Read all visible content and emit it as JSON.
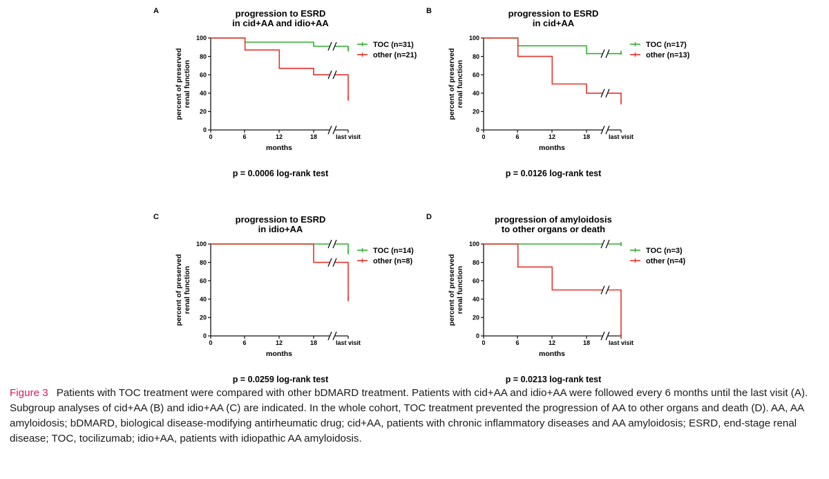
{
  "chart_data": [
    {
      "panel": "A",
      "type": "line",
      "title": [
        "progression to ESRD",
        "in cid+AA and idio+AA"
      ],
      "xlabel": "months",
      "ylabel": [
        "percent of preserved",
        "renal function"
      ],
      "x_ticks": [
        "0",
        "6",
        "12",
        "18",
        "last visit"
      ],
      "y_ticks": [
        "0",
        "20",
        "40",
        "60",
        "80",
        "100"
      ],
      "ylim": [
        0,
        100
      ],
      "axis_break": true,
      "legend_position": "top-right",
      "series": [
        {
          "name": "TOC (n=31)",
          "color": "#2db02d",
          "points": [
            [
              0,
              100
            ],
            [
              6,
              100
            ],
            [
              6,
              95.5
            ],
            [
              18,
              95.5
            ],
            [
              18,
              91
            ],
            [
              "last",
              91
            ],
            [
              "last",
              87.5
            ]
          ]
        },
        {
          "name": "other (n=21)",
          "color": "#e8312a",
          "points": [
            [
              0,
              100
            ],
            [
              6,
              100
            ],
            [
              6,
              87
            ],
            [
              12,
              87
            ],
            [
              12,
              67
            ],
            [
              18,
              67
            ],
            [
              18,
              60
            ],
            [
              "last",
              60
            ],
            [
              "last",
              34
            ]
          ]
        }
      ],
      "pvalue": "p = 0.0006 log-rank test"
    },
    {
      "panel": "B",
      "type": "line",
      "title": [
        "progression to ESRD",
        "in cid+AA"
      ],
      "xlabel": "months",
      "ylabel": [
        "percent of preserved",
        "renal function"
      ],
      "x_ticks": [
        "0",
        "6",
        "12",
        "18",
        "last visit"
      ],
      "y_ticks": [
        "0",
        "20",
        "40",
        "60",
        "80",
        "100"
      ],
      "ylim": [
        0,
        100
      ],
      "axis_break": true,
      "legend_position": "top-right",
      "series": [
        {
          "name": "TOC (n=17)",
          "color": "#2db02d",
          "points": [
            [
              0,
              100
            ],
            [
              6,
              100
            ],
            [
              6,
              91.5
            ],
            [
              18,
              91.5
            ],
            [
              18,
              83
            ],
            [
              "last",
              83
            ],
            [
              "last",
              84
            ]
          ]
        },
        {
          "name": "other (n=13)",
          "color": "#e8312a",
          "points": [
            [
              0,
              100
            ],
            [
              6,
              100
            ],
            [
              6,
              80
            ],
            [
              12,
              80
            ],
            [
              12,
              50
            ],
            [
              18,
              50
            ],
            [
              18,
              40
            ],
            [
              "last",
              40
            ],
            [
              "last",
              30
            ]
          ]
        }
      ],
      "pvalue": "p = 0.0126 log-rank test"
    },
    {
      "panel": "C",
      "type": "line",
      "title": [
        "progression to ESRD",
        "in idio+AA"
      ],
      "xlabel": "months",
      "ylabel": [
        "percent of preserved",
        "renal function"
      ],
      "x_ticks": [
        "0",
        "6",
        "12",
        "18",
        "last visit"
      ],
      "y_ticks": [
        "0",
        "20",
        "40",
        "60",
        "80",
        "100"
      ],
      "ylim": [
        0,
        100
      ],
      "axis_break": true,
      "legend_position": "top-right",
      "series": [
        {
          "name": "TOC (n=14)",
          "color": "#2db02d",
          "points": [
            [
              0,
              100
            ],
            [
              18,
              100
            ],
            [
              "last",
              100
            ],
            [
              "last",
              91
            ]
          ]
        },
        {
          "name": "other (n=8)",
          "color": "#e8312a",
          "points": [
            [
              0,
              100
            ],
            [
              18,
              100
            ],
            [
              18,
              80
            ],
            [
              "last",
              80
            ],
            [
              "last",
              40
            ]
          ]
        }
      ],
      "pvalue": "p = 0.0259 log-rank test"
    },
    {
      "panel": "D",
      "type": "line",
      "title": [
        "progression of amyloidosis",
        "to other organs or death"
      ],
      "xlabel": "months",
      "ylabel": [
        "percent of preserved",
        "renal function"
      ],
      "x_ticks": [
        "0",
        "6",
        "12",
        "18",
        "last visit"
      ],
      "y_ticks": [
        "0",
        "20",
        "40",
        "60",
        "80",
        "100"
      ],
      "ylim": [
        0,
        100
      ],
      "axis_break": true,
      "legend_position": "top-right",
      "series": [
        {
          "name": "TOC (n=3)",
          "color": "#2db02d",
          "points": [
            [
              0,
              100
            ],
            [
              "last",
              100
            ]
          ]
        },
        {
          "name": "other (n=4)",
          "color": "#e8312a",
          "points": [
            [
              0,
              100
            ],
            [
              6,
              100
            ],
            [
              6,
              75
            ],
            [
              12,
              75
            ],
            [
              12,
              50
            ],
            [
              "last",
              50
            ],
            [
              "last",
              0
            ]
          ]
        }
      ],
      "pvalue": "p = 0.0213 log-rank test"
    }
  ],
  "caption": {
    "label": "Figure 3",
    "text": "Patients with TOC treatment were compared with other bDMARD treatment. Patients with cid+AA and idio+AA were followed every 6 months until the last visit (A). Subgroup analyses of cid+AA (B) and idio+AA (C) are indicated. In the whole cohort, TOC treatment prevented the progression of AA to other organs and death (D). AA, AA amyloidosis; bDMARD, biological disease-modifying antirheumatic drug; cid+AA, patients with chronic inflammatory diseases and AA amyloidosis; ESRD, end-stage renal disease; TOC, tocilizumab; idio+AA, patients with idiopathic AA amyloidosis."
  }
}
